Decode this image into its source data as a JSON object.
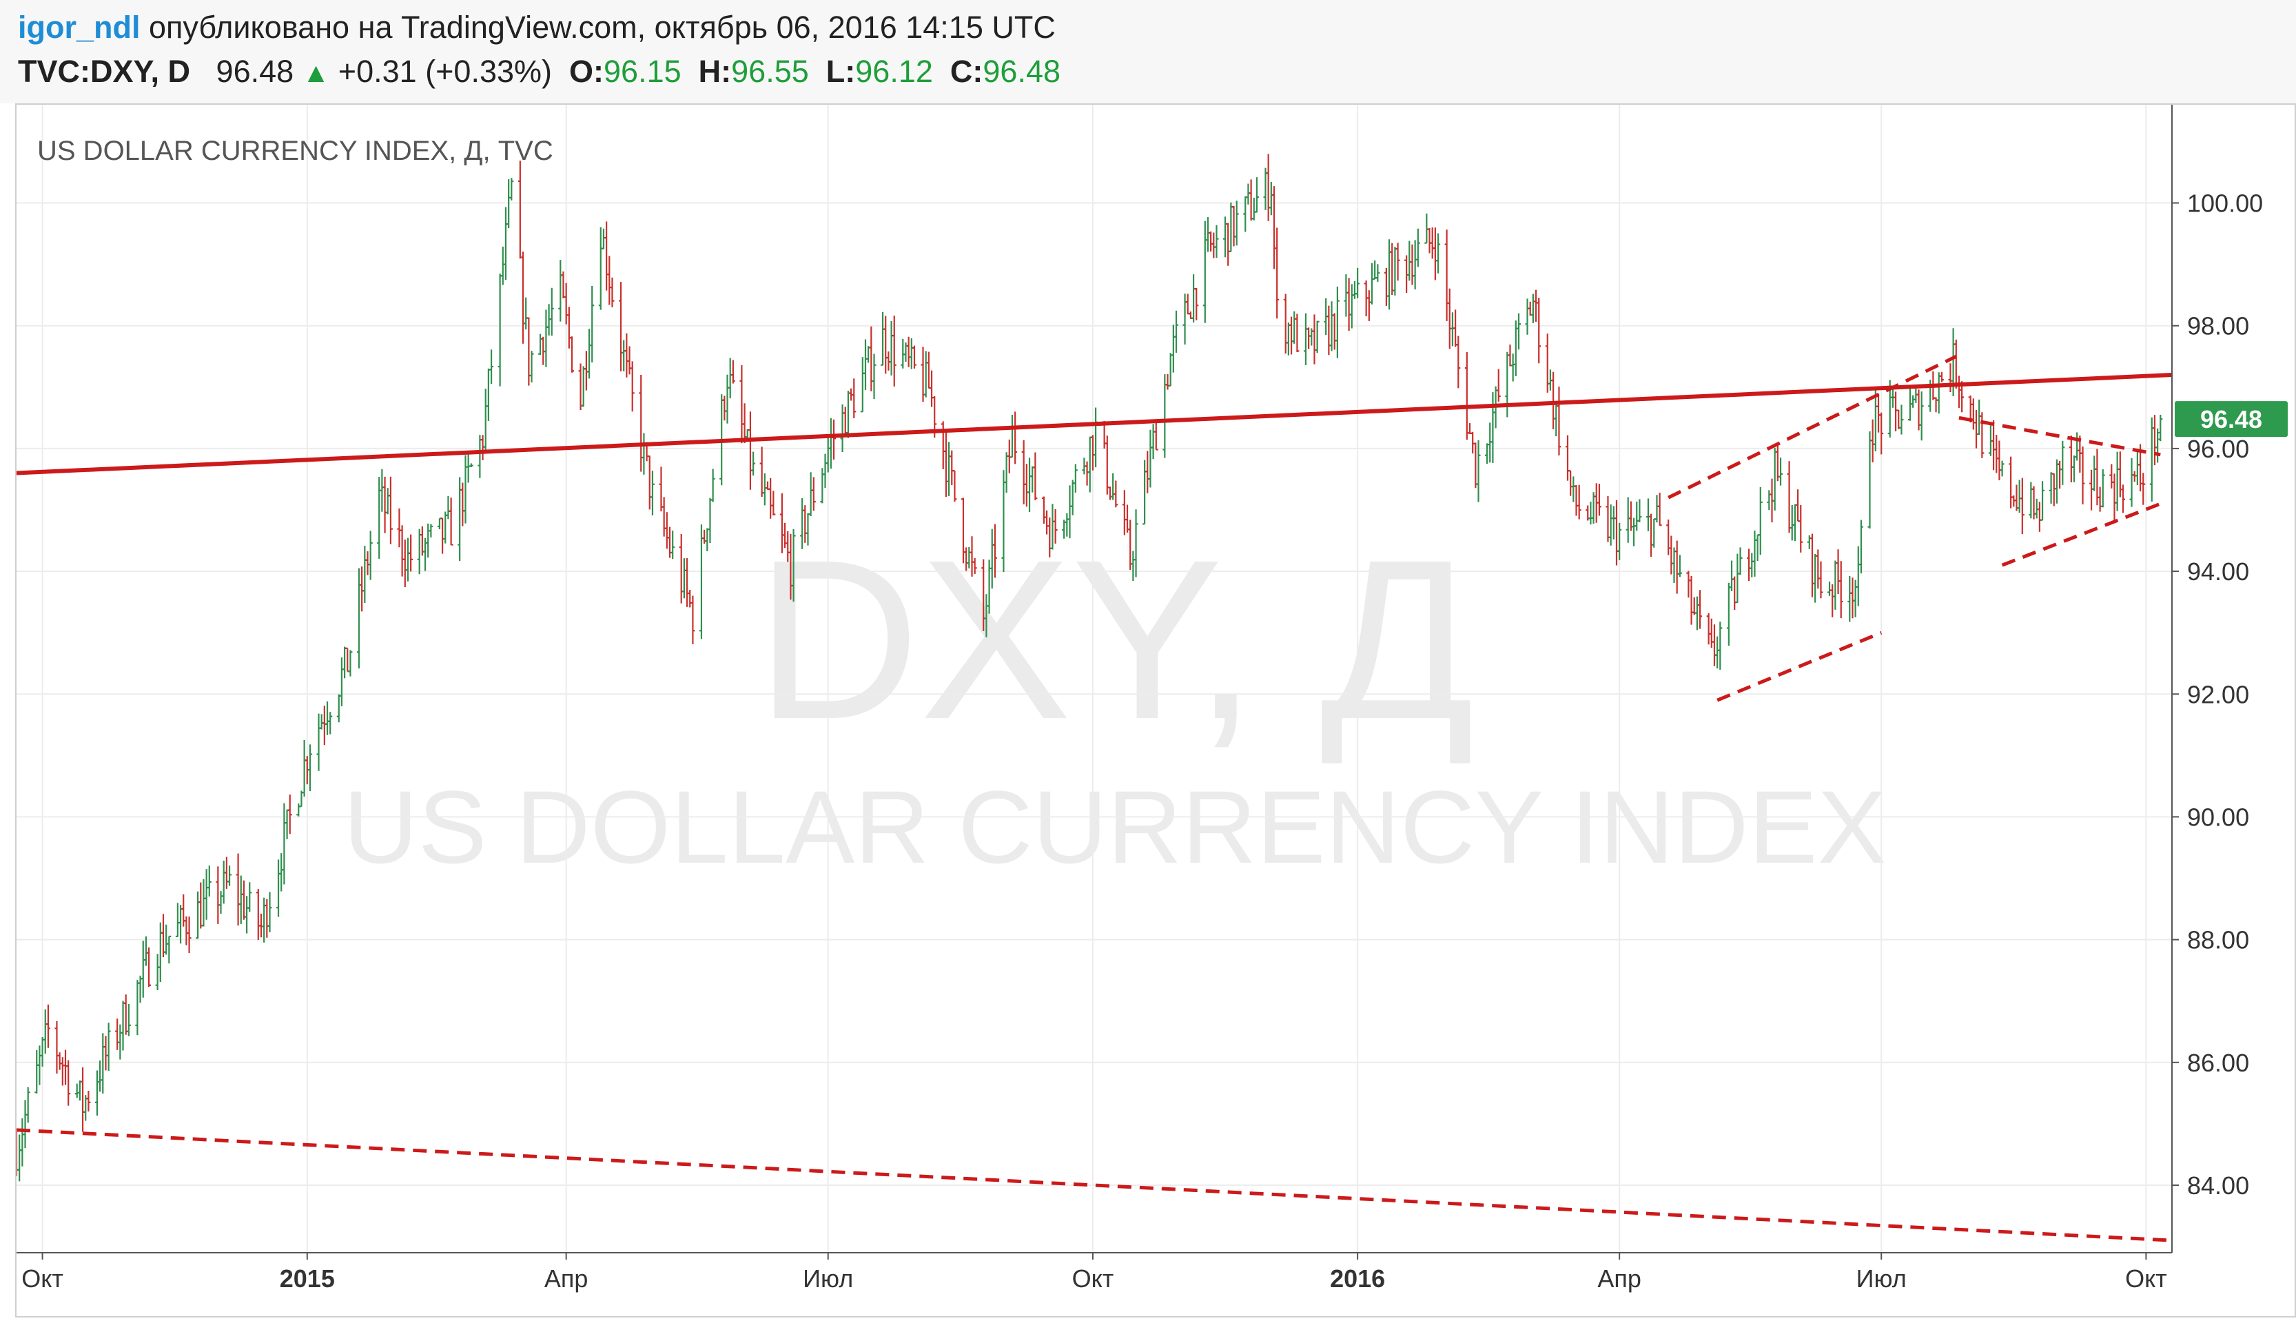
{
  "header": {
    "author": "igor_ndl",
    "published_text": "опубликовано на TradingView.com, октябрь 06, 2016 14:15 UTC",
    "symbol": "TVC:DXY, D",
    "last": "96.48",
    "change": "+0.31 (+0.33%)",
    "o_label": "O:",
    "o_value": "96.15",
    "h_label": "H:",
    "h_value": "96.55",
    "l_label": "L:",
    "l_value": "96.12",
    "c_label": "C:",
    "c_value": "96.48"
  },
  "chart_data": {
    "type": "candlestick",
    "title": "US DOLLAR CURRENCY INDEX, Д, TVC",
    "watermark_symbol": "DXY, Д",
    "watermark_name": "US DOLLAR CURRENCY INDEX",
    "current_price_label": "96.48",
    "current_price": 96.48,
    "ylim": [
      82.9,
      101.6
    ],
    "yticks": [
      84,
      86,
      88,
      90,
      92,
      94,
      96,
      98,
      100
    ],
    "ytick_labels": [
      "84.00",
      "86.00",
      "88.00",
      "90.00",
      "92.00",
      "94.00",
      "96.00",
      "98.00",
      "100.00"
    ],
    "xlim": [
      "2014-09-22",
      "2016-10-10"
    ],
    "xticks": [
      {
        "date": "2014-10-01",
        "label": "Окт",
        "bold": false
      },
      {
        "date": "2015-01-01",
        "label": "2015",
        "bold": true
      },
      {
        "date": "2015-04-01",
        "label": "Апр",
        "bold": false
      },
      {
        "date": "2015-07-01",
        "label": "Июл",
        "bold": false
      },
      {
        "date": "2015-10-01",
        "label": "Окт",
        "bold": false
      },
      {
        "date": "2016-01-01",
        "label": "2016",
        "bold": true
      },
      {
        "date": "2016-04-01",
        "label": "Апр",
        "bold": false
      },
      {
        "date": "2016-07-01",
        "label": "Июл",
        "bold": false
      },
      {
        "date": "2016-10-01",
        "label": "Окт",
        "bold": false
      }
    ],
    "colors": {
      "up": "#2f8f4e",
      "down": "#c9302c",
      "trend": "#cc1a1a",
      "label_bg": "#2e9a4d"
    },
    "price_path": [
      [
        "2014-09-22",
        84.6
      ],
      [
        "2014-10-03",
        86.5
      ],
      [
        "2014-10-15",
        85.3
      ],
      [
        "2014-10-31",
        86.9
      ],
      [
        "2014-11-10",
        87.9
      ],
      [
        "2014-12-05",
        88.9
      ],
      [
        "2014-12-16",
        88.2
      ],
      [
        "2015-01-02",
        91.2
      ],
      [
        "2015-01-15",
        92.5
      ],
      [
        "2015-01-26",
        95.2
      ],
      [
        "2015-02-05",
        94.2
      ],
      [
        "2015-02-20",
        94.7
      ],
      [
        "2015-03-03",
        96.2
      ],
      [
        "2015-03-13",
        100.2
      ],
      [
        "2015-03-19",
        97.4
      ],
      [
        "2015-03-30",
        98.5
      ],
      [
        "2015-04-06",
        96.8
      ],
      [
        "2015-04-13",
        99.6
      ],
      [
        "2015-04-22",
        97.2
      ],
      [
        "2015-05-01",
        95.2
      ],
      [
        "2015-05-15",
        93.3
      ],
      [
        "2015-05-27",
        97.2
      ],
      [
        "2015-06-05",
        95.6
      ],
      [
        "2015-06-18",
        94.1
      ],
      [
        "2015-07-01",
        96.0
      ],
      [
        "2015-07-20",
        97.8
      ],
      [
        "2015-08-05",
        97.0
      ],
      [
        "2015-08-24",
        93.2
      ],
      [
        "2015-09-03",
        96.2
      ],
      [
        "2015-09-17",
        94.6
      ],
      [
        "2015-10-02",
        96.3
      ],
      [
        "2015-10-14",
        94.2
      ],
      [
        "2015-10-28",
        97.5
      ],
      [
        "2015-11-10",
        99.2
      ],
      [
        "2015-12-02",
        100.3
      ],
      [
        "2015-12-04",
        98.2
      ],
      [
        "2015-12-15",
        97.6
      ],
      [
        "2015-12-29",
        98.3
      ],
      [
        "2016-01-13",
        98.9
      ],
      [
        "2016-01-28",
        99.4
      ],
      [
        "2016-02-11",
        95.7
      ],
      [
        "2016-02-25",
        97.7
      ],
      [
        "2016-03-02",
        98.4
      ],
      [
        "2016-03-16",
        95.1
      ],
      [
        "2016-04-01",
        94.6
      ],
      [
        "2016-04-14",
        94.8
      ],
      [
        "2016-05-03",
        92.6
      ],
      [
        "2016-05-25",
        95.6
      ],
      [
        "2016-06-10",
        93.8
      ],
      [
        "2016-06-23",
        93.8
      ],
      [
        "2016-06-27",
        96.4
      ],
      [
        "2016-07-12",
        96.6
      ],
      [
        "2016-07-26",
        97.4
      ],
      [
        "2016-08-10",
        95.6
      ],
      [
        "2016-08-24",
        94.9
      ],
      [
        "2016-09-02",
        95.8
      ],
      [
        "2016-09-14",
        95.4
      ],
      [
        "2016-09-29",
        95.5
      ],
      [
        "2016-10-06",
        96.48
      ]
    ],
    "trend_lines": [
      {
        "name": "long-resistance",
        "style": "solid",
        "from": [
          "2014-09-22",
          95.6
        ],
        "to": [
          "2016-10-10",
          97.2
        ]
      },
      {
        "name": "long-support",
        "style": "dashed",
        "from": [
          "2014-09-22",
          84.9
        ],
        "to": [
          "2016-10-10",
          83.1
        ]
      },
      {
        "name": "channel-upper",
        "style": "dashed",
        "from": [
          "2016-04-18",
          95.2
        ],
        "to": [
          "2016-07-27",
          97.5
        ]
      },
      {
        "name": "channel-lower",
        "style": "dashed",
        "from": [
          "2016-05-05",
          91.9
        ],
        "to": [
          "2016-07-01",
          93.0
        ]
      },
      {
        "name": "triangle-upper",
        "style": "dashed",
        "from": [
          "2016-07-28",
          96.5
        ],
        "to": [
          "2016-10-06",
          95.9
        ]
      },
      {
        "name": "triangle-lower",
        "style": "dashed",
        "from": [
          "2016-08-12",
          94.1
        ],
        "to": [
          "2016-10-06",
          95.1
        ]
      }
    ]
  }
}
